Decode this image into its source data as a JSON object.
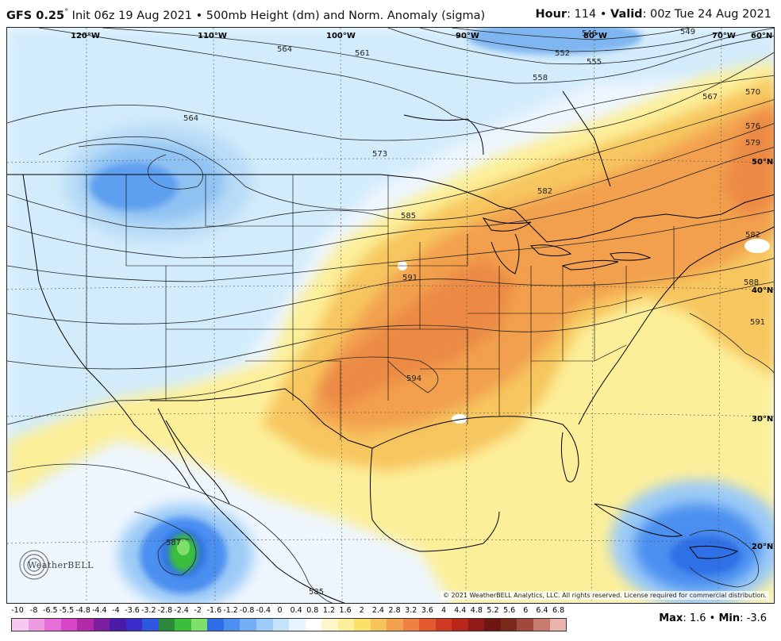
{
  "header": {
    "model": "GFS 0.25",
    "degree": "°",
    "init_text": " Init 06z 19 Aug 2021 • 500mb Height (dm) and Norm. Anomaly (sigma)",
    "hour_label": "Hour",
    "hour_value": ": 114 • ",
    "valid_label": "Valid",
    "valid_value": ": 00z Tue 24 Aug 2021"
  },
  "map": {
    "longitude_labels": [
      "120°W",
      "110°W",
      "100°W",
      "90°W",
      "80°W",
      "70°W",
      "60°N"
    ],
    "latitude_labels": [
      "50°N",
      "40°N",
      "30°N",
      "20°N"
    ],
    "contour_labels": [
      "564",
      "561",
      "546",
      "549",
      "552",
      "555",
      "558",
      "564",
      "573",
      "567",
      "570",
      "576",
      "579",
      "582",
      "585",
      "582",
      "591",
      "588",
      "591",
      "594",
      "587",
      "585"
    ],
    "logo_text": "WeatherBELL",
    "copyright": "© 2021 WeatherBELL Analytics, LLC. All rights reserved. License required for commercial distribution."
  },
  "colorbar": {
    "labels": [
      "-10",
      "-8",
      "-6.5",
      "-5.5",
      "-4.8",
      "-4.4",
      "-4",
      "-3.6",
      "-3.2",
      "-2.8",
      "-2.4",
      "-2",
      "-1.6",
      "-1.2",
      "-0.8",
      "-0.4",
      "0",
      "0.4",
      "0.8",
      "1.2",
      "1.6",
      "2",
      "2.4",
      "2.8",
      "3.2",
      "3.6",
      "4",
      "4.4",
      "4.8",
      "5.2",
      "5.6",
      "6",
      "6.4",
      "6.8"
    ],
    "colors": [
      "#f7c8f0",
      "#ee9be3",
      "#e56fd6",
      "#d845c7",
      "#b22aa8",
      "#7b1ea0",
      "#4a1ba8",
      "#3b2dcc",
      "#2f58e0",
      "#2a8a3a",
      "#3bbf3a",
      "#7ee06a",
      "#2f6fe6",
      "#4b8ff0",
      "#73adf3",
      "#9ccbf7",
      "#c3e3fb",
      "#e6f4fd",
      "#ffffff",
      "#fbf7c9",
      "#fcef9a",
      "#fbe06a",
      "#f6c35a",
      "#f3a14e",
      "#ef8143",
      "#e35a2e",
      "#d03a23",
      "#b9251b",
      "#8f1a16",
      "#6d1612",
      "#7a2a1a",
      "#a04a3c",
      "#c77b6e",
      "#e9b2aa"
    ]
  },
  "stats": {
    "max_label": "Max",
    "max_value": ": 1.6 • ",
    "min_label": "Min",
    "min_value": ": -3.6"
  }
}
